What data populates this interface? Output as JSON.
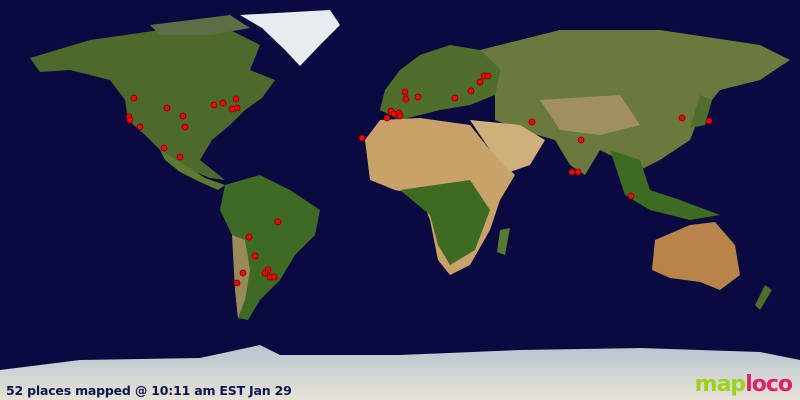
{
  "map": {
    "caption": "52 places mapped @ 10:11 am EST Jan 29",
    "marker_color": "#ff0000",
    "ocean_color": "#0a0a40",
    "logo": {
      "part1": "map",
      "part2": "loco",
      "colors": [
        "#9bd21a",
        "#e0206a"
      ]
    }
  }
}
